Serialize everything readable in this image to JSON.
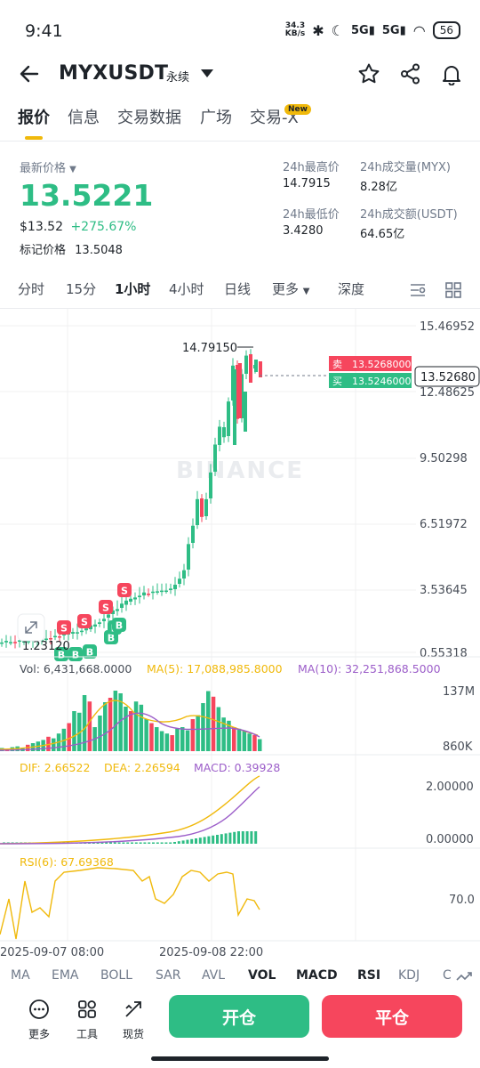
{
  "status": {
    "time": "9:41",
    "speed": "34.3\nKB/s",
    "battery": "56"
  },
  "header": {
    "symbol": "MYXUSDT",
    "contract_type": "永续"
  },
  "tabs": [
    {
      "label": "报价"
    },
    {
      "label": "信息"
    },
    {
      "label": "交易数据"
    },
    {
      "label": "广场"
    },
    {
      "label": "交易-X"
    }
  ],
  "new_badge": "New",
  "price": {
    "label": "最新价格",
    "last": "13.5221",
    "usd": "$13.52",
    "change": "+275.67%",
    "mark_label": "标记价格",
    "mark": "13.5048"
  },
  "stats": {
    "high_label": "24h最高价",
    "high": "14.7915",
    "low_label": "24h最低价",
    "low": "3.4280",
    "vol_label": "24h成交量(MYX)",
    "vol": "8.28亿",
    "amount_label": "24h成交额(USDT)",
    "amount": "64.65亿"
  },
  "chart_tabs": [
    {
      "label": "分时"
    },
    {
      "label": "15分"
    },
    {
      "label": "1小时"
    },
    {
      "label": "4小时"
    },
    {
      "label": "日线"
    },
    {
      "label": "更多"
    },
    {
      "label": "深度"
    }
  ],
  "chart": {
    "y_ticks": [
      "15.46952",
      "12.48625",
      "9.50298",
      "6.51972",
      "3.53645",
      "0.55318"
    ],
    "high_label": "14.79150",
    "low_label": "1.23120",
    "sell_label": "卖",
    "sell_price": "13.5268000",
    "buy_label": "买",
    "buy_price": "13.5246000",
    "current": "13.52680",
    "watermark": "BINANCE",
    "marker_s": "S",
    "marker_b": "B",
    "vol_text": "Vol: 6,431,668.0000",
    "ma5_text": "MA(5): 17,088,985.8000",
    "ma10_text": "MA(10): 32,251,868.5000",
    "vol_ticks": [
      "137M",
      "860K"
    ],
    "dif_text": "DIF: 2.66522",
    "dea_text": "DEA: 2.26594",
    "macd_text": "MACD: 0.39928",
    "macd_ticks": [
      "2.00000",
      "0.00000"
    ],
    "rsi_text": "RSI(6): 67.69368",
    "rsi_ticks": [
      "70.0"
    ],
    "x_labels": [
      "2025-09-07 08:00",
      "2025-09-08 22:00"
    ],
    "colors": {
      "up": "#2ebd85",
      "down": "#f6465d",
      "ma5": "#f0b90b",
      "ma10": "#9c5ec9",
      "rsi": "#f0b90b"
    }
  },
  "indicators": [
    {
      "label": "MA"
    },
    {
      "label": "EMA"
    },
    {
      "label": "BOLL"
    },
    {
      "label": "SAR"
    },
    {
      "label": "AVL"
    },
    {
      "label": "VOL"
    },
    {
      "label": "MACD"
    },
    {
      "label": "RSI"
    },
    {
      "label": "KDJ"
    },
    {
      "label": "C"
    }
  ],
  "bottom": {
    "more": "更多",
    "tools": "工具",
    "spot": "现货",
    "open": "开仓",
    "close": "平仓"
  }
}
